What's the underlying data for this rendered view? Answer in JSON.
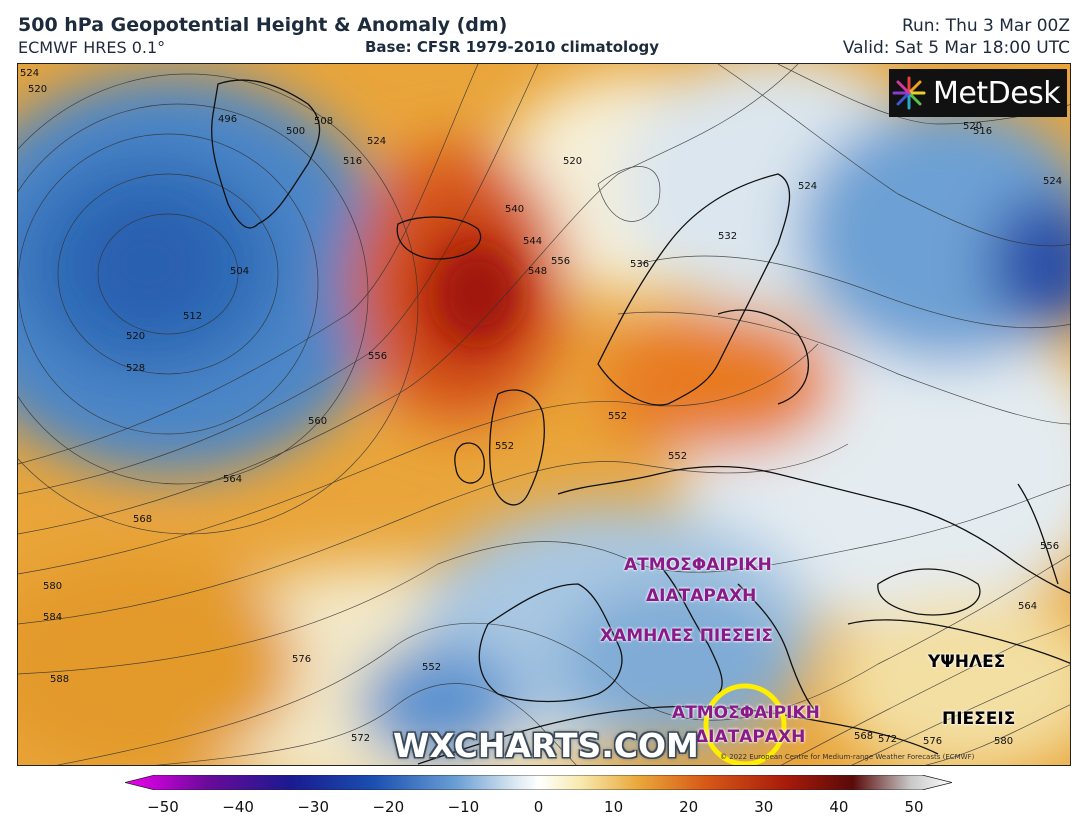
{
  "header": {
    "title": "500 hPa Geopotential Height & Anomaly (dm)",
    "model": "ECMWF HRES 0.1°",
    "base": "Base: CFSR 1979-2010 climatology",
    "run": "Run: Thu 3 Mar 00Z",
    "valid": "Valid: Sat 5 Mar 18:00 UTC"
  },
  "logo": {
    "text": "MetDesk"
  },
  "watermark": "WXCHARTS.COM",
  "copyright": "© 2022 European Centre for Medium-range Weather Forecasts (ECMWF)",
  "annotations": {
    "disturbance_1_line1": "ΑΤΜΟΣΦΑΙΡΙΚΗ",
    "disturbance_1_line2": "ΔΙΑΤΑΡΑΧΗ",
    "low_pressure": "ΧΑΜΗΛΕΣ ΠΙΕΣΕΙΣ",
    "disturbance_2_line1": "ΑΤΜΟΣΦΑΙΡΙΚΗ",
    "disturbance_2_line2": "ΔΙΑΤΑΡΑΧΗ",
    "high_line1": "ΥΨΗΛΕΣ",
    "high_line2": "ΠΙΕΣΕΙΣ"
  },
  "contour_labels": [
    "524",
    "520",
    "496",
    "500",
    "508",
    "516",
    "524",
    "520",
    "504",
    "512",
    "520",
    "528",
    "540",
    "544",
    "548",
    "556",
    "560",
    "564",
    "568",
    "580",
    "584",
    "588",
    "576",
    "572",
    "552",
    "552",
    "556",
    "552",
    "532",
    "536",
    "524",
    "520",
    "516",
    "524",
    "556",
    "564",
    "568",
    "572",
    "576",
    "580",
    "552"
  ],
  "colorbar": {
    "ticks": [
      "−50",
      "−40",
      "−30",
      "−20",
      "−10",
      "0",
      "10",
      "20",
      "30",
      "40",
      "50"
    ],
    "min": -50,
    "max": 50,
    "colors": {
      "deep_neg": "#d800d8",
      "neg": "#1e5fb0",
      "zero": "#ffffff",
      "pos": "#e07a10",
      "deep_pos": "#8a0000",
      "extreme": "#f0f0f0"
    }
  }
}
